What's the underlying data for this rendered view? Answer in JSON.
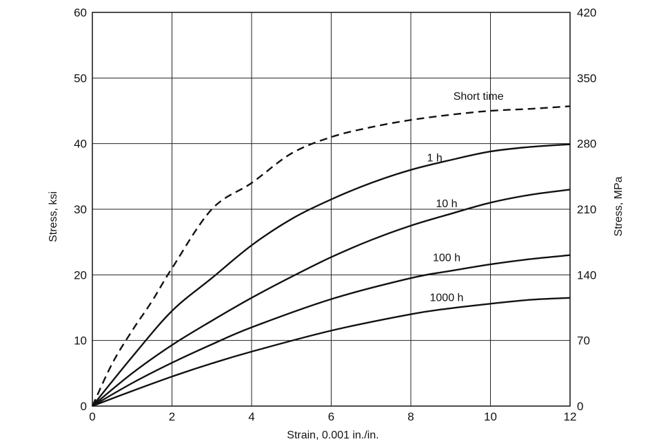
{
  "chart_data": {
    "type": "line",
    "title": "",
    "xlabel": "Strain, 0.001 in./in.",
    "ylabel": "Stress, ksi",
    "y2label": "Stress, MPa",
    "xlim": [
      0,
      12
    ],
    "ylim": [
      0,
      60
    ],
    "y2lim": [
      0,
      420
    ],
    "grid": true,
    "x_ticks": [
      "0",
      "2",
      "4",
      "6",
      "8",
      "10",
      "12"
    ],
    "x_tick_values": [
      0,
      2,
      4,
      6,
      8,
      10,
      12
    ],
    "y_ticks": [
      "0",
      "10",
      "20",
      "30",
      "40",
      "50",
      "60"
    ],
    "y_tick_values": [
      0,
      10,
      20,
      30,
      40,
      50,
      60
    ],
    "y2_ticks": [
      "0",
      "70",
      "140",
      "210",
      "280",
      "350",
      "420"
    ],
    "y2_tick_values": [
      0,
      70,
      140,
      210,
      280,
      350,
      420
    ],
    "series": [
      {
        "name": "Short time",
        "label": "Short time",
        "style": "dashed",
        "x": [
          0,
          0.5,
          1,
          1.5,
          2,
          3,
          4,
          5,
          6,
          7,
          8,
          9,
          10,
          11,
          12
        ],
        "y": [
          0,
          6.5,
          11.5,
          16,
          21,
          30,
          34,
          38.5,
          41,
          42.5,
          43.6,
          44.4,
          45,
          45.3,
          45.7
        ]
      },
      {
        "name": "1 h",
        "label": "1 h",
        "style": "solid",
        "x": [
          0,
          1,
          2,
          3,
          4,
          5,
          6,
          7,
          8,
          9,
          10,
          11,
          12
        ],
        "y": [
          0,
          7.5,
          14.5,
          19.5,
          24.5,
          28.5,
          31.5,
          34,
          36,
          37.5,
          38.8,
          39.5,
          39.9
        ]
      },
      {
        "name": "10 h",
        "label": "10 h",
        "style": "solid",
        "x": [
          0,
          1,
          2,
          3,
          4,
          5,
          6,
          7,
          8,
          9,
          10,
          11,
          12
        ],
        "y": [
          0,
          5,
          9.3,
          13,
          16.5,
          19.7,
          22.7,
          25.3,
          27.5,
          29.3,
          31,
          32.2,
          33
        ]
      },
      {
        "name": "100 h",
        "label": "100 h",
        "style": "solid",
        "x": [
          0,
          1,
          2,
          3,
          4,
          6,
          8,
          9,
          10,
          11,
          12
        ],
        "y": [
          0,
          3.5,
          6.6,
          9.4,
          12,
          16.3,
          19.5,
          20.6,
          21.6,
          22.4,
          23
        ]
      },
      {
        "name": "1000 h",
        "label": "1000 h",
        "style": "solid",
        "x": [
          0,
          1,
          2,
          3,
          4,
          6,
          8,
          9,
          10,
          11,
          12
        ],
        "y": [
          0,
          2.3,
          4.5,
          6.5,
          8.3,
          11.5,
          14,
          14.9,
          15.6,
          16.2,
          16.5
        ]
      }
    ]
  }
}
